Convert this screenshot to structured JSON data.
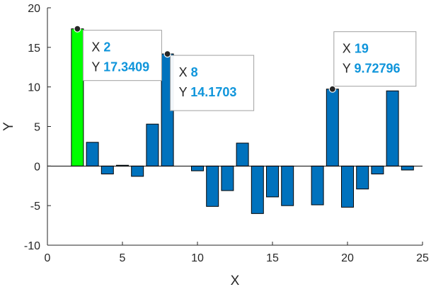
{
  "chart_data": {
    "type": "bar",
    "xlabel": "X",
    "ylabel": "Y",
    "xlim": [
      0,
      25
    ],
    "ylim": [
      -10,
      20
    ],
    "x_ticks": [
      0,
      5,
      10,
      15,
      20,
      25
    ],
    "y_ticks": [
      -10,
      -5,
      0,
      5,
      10,
      15,
      20
    ],
    "grid": false,
    "bar_color": "#0072BD",
    "highlight_color": "#00FF00",
    "bars": [
      {
        "x": 2,
        "y": 17.3409,
        "highlight": true
      },
      {
        "x": 3,
        "y": 3.0
      },
      {
        "x": 4,
        "y": -1.0
      },
      {
        "x": 5,
        "y": 0.1
      },
      {
        "x": 6,
        "y": -1.3
      },
      {
        "x": 7,
        "y": 5.3
      },
      {
        "x": 8,
        "y": 14.1703
      },
      {
        "x": 10,
        "y": -0.6
      },
      {
        "x": 11,
        "y": -5.1
      },
      {
        "x": 12,
        "y": -3.1
      },
      {
        "x": 13,
        "y": 2.9
      },
      {
        "x": 14,
        "y": -6.0
      },
      {
        "x": 15,
        "y": -3.9
      },
      {
        "x": 16,
        "y": -5.0
      },
      {
        "x": 18,
        "y": -4.9
      },
      {
        "x": 19,
        "y": 9.72796
      },
      {
        "x": 20,
        "y": -5.2
      },
      {
        "x": 21,
        "y": -2.9
      },
      {
        "x": 22,
        "y": -1.0
      },
      {
        "x": 23,
        "y": 9.5
      },
      {
        "x": 24,
        "y": -0.5
      }
    ],
    "datatips": [
      {
        "x": 2,
        "y": 17.3409,
        "x_label": "X",
        "y_label": "Y",
        "x_value": "2",
        "y_value": "17.3409"
      },
      {
        "x": 8,
        "y": 14.1703,
        "x_label": "X",
        "y_label": "Y",
        "x_value": "8",
        "y_value": "14.1703"
      },
      {
        "x": 19,
        "y": 9.72796,
        "x_label": "X",
        "y_label": "Y",
        "x_value": "19",
        "y_value": "9.72796"
      }
    ],
    "datatip_value_color": "#0F95DB"
  }
}
